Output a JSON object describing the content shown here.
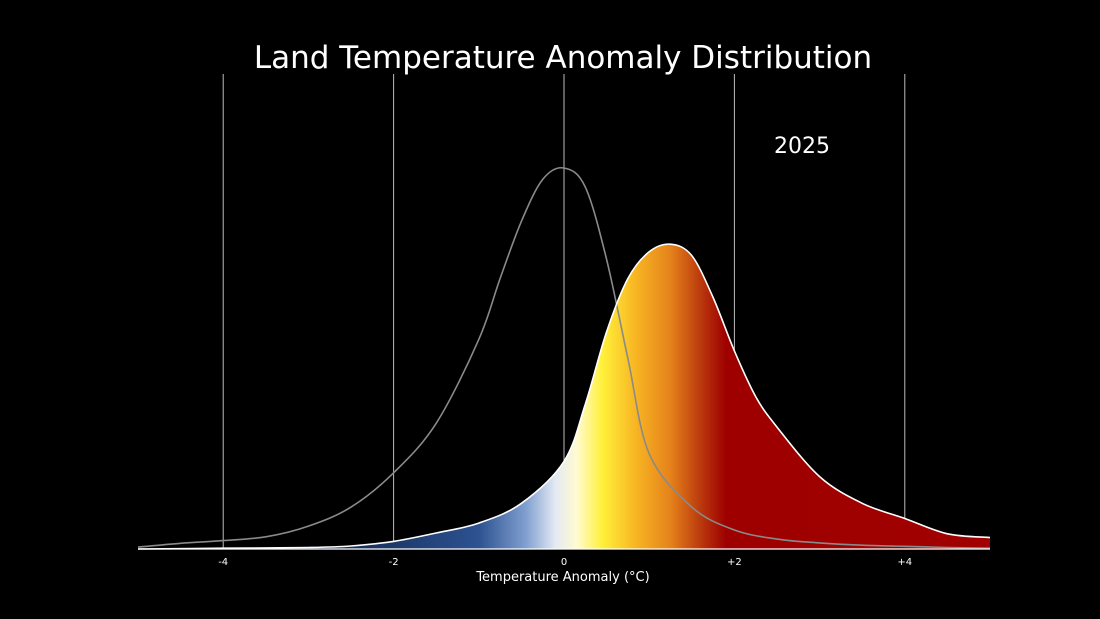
{
  "chart_data": {
    "type": "area",
    "title": "Land Temperature Anomaly Distribution",
    "year_label": "2025",
    "xlabel": "Temperature Anomaly (°C)",
    "xlim": [
      -5,
      5
    ],
    "ylim": [
      0,
      1
    ],
    "grid": true,
    "ticks": [
      {
        "value": -4,
        "label": "-4"
      },
      {
        "value": -2,
        "label": "-2"
      },
      {
        "value": 0,
        "label": "0"
      },
      {
        "value": 2,
        "label": "+2"
      },
      {
        "value": 4,
        "label": "+4"
      }
    ],
    "series": [
      {
        "style": "baseline-outline",
        "color": "#8a8a8a",
        "x": [
          -5.0,
          -4.5,
          -4.0,
          -3.5,
          -3.0,
          -2.5,
          -2.0,
          -1.5,
          -1.0,
          -0.75,
          -0.5,
          -0.25,
          0.0,
          0.25,
          0.5,
          0.75,
          1.0,
          1.5,
          2.0,
          2.5,
          3.0,
          3.5,
          4.0,
          4.5,
          5.0
        ],
        "values": [
          0.005,
          0.015,
          0.022,
          0.032,
          0.06,
          0.11,
          0.2,
          0.33,
          0.55,
          0.71,
          0.86,
          0.97,
          1.0,
          0.95,
          0.76,
          0.5,
          0.25,
          0.11,
          0.05,
          0.026,
          0.016,
          0.01,
          0.007,
          0.004,
          0.002
        ]
      },
      {
        "style": "filled-gradient",
        "outline_color": "#ffffff",
        "x": [
          -5.0,
          -4.0,
          -3.0,
          -2.5,
          -2.0,
          -1.5,
          -1.0,
          -0.5,
          0.0,
          0.25,
          0.5,
          0.75,
          1.0,
          1.25,
          1.5,
          1.75,
          2.0,
          2.25,
          2.5,
          3.0,
          3.5,
          4.0,
          4.5,
          5.0
        ],
        "values": [
          0.0,
          0.002,
          0.004,
          0.008,
          0.02,
          0.042,
          0.068,
          0.12,
          0.23,
          0.38,
          0.57,
          0.71,
          0.78,
          0.8,
          0.77,
          0.66,
          0.52,
          0.4,
          0.32,
          0.19,
          0.12,
          0.08,
          0.04,
          0.03
        ]
      }
    ],
    "gradient_stops": [
      {
        "at": -3.0,
        "color": "#0d2148"
      },
      {
        "at": -1.0,
        "color": "#2d5290"
      },
      {
        "at": -0.45,
        "color": "#7f9fd0"
      },
      {
        "at": -0.1,
        "color": "#e4e9f4"
      },
      {
        "at": 0.15,
        "color": "#fffbd0"
      },
      {
        "at": 0.45,
        "color": "#fff03a"
      },
      {
        "at": 0.85,
        "color": "#f7b422"
      },
      {
        "at": 1.25,
        "color": "#e5821b"
      },
      {
        "at": 1.6,
        "color": "#bb3a0d"
      },
      {
        "at": 1.9,
        "color": "#9e0000"
      },
      {
        "at": 5.0,
        "color": "#a00000"
      }
    ]
  }
}
